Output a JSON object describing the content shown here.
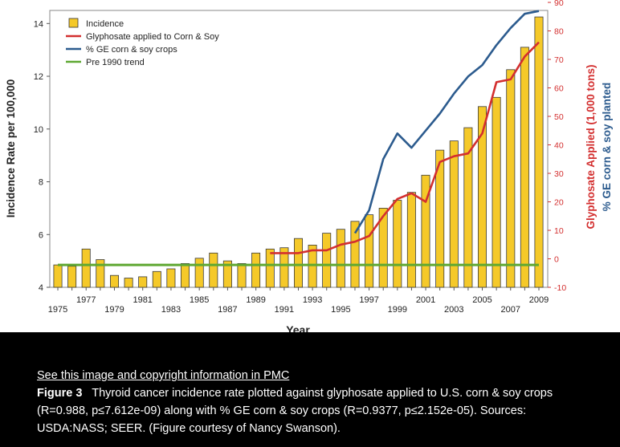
{
  "chart_data": {
    "type": "bar+line",
    "xlabel": "Year",
    "ylabel_left": "Incidence Rate per 100,000",
    "ylabel_right_1": "Glyphosate Applied (1,000 tons)",
    "ylabel_right_2": "% GE corn & soy planted",
    "ylim_left": [
      4,
      14.8
    ],
    "ylim_right": [
      -10,
      90
    ],
    "left_ticks": [
      4,
      6,
      8,
      10,
      12,
      14
    ],
    "right_ticks": [
      -10,
      0,
      10,
      20,
      30,
      40,
      50,
      60,
      70,
      80,
      90
    ],
    "x_tick_labels_lower": [
      "1975",
      "1979",
      "1983",
      "1987",
      "1991",
      "1995",
      "1999",
      "2003",
      "2007"
    ],
    "x_tick_labels_upper": [
      "1977",
      "1981",
      "1985",
      "1989",
      "1993",
      "1997",
      "2001",
      "2005",
      "2009"
    ],
    "x_tick_labels_lower_years": [
      1975,
      1979,
      1983,
      1987,
      1991,
      1995,
      1999,
      2003,
      2007
    ],
    "x_tick_labels_upper_years": [
      1977,
      1981,
      1985,
      1989,
      1993,
      1997,
      2001,
      2005,
      2009
    ],
    "years": [
      1975,
      1976,
      1977,
      1978,
      1979,
      1980,
      1981,
      1982,
      1983,
      1984,
      1985,
      1986,
      1987,
      1988,
      1989,
      1990,
      1991,
      1992,
      1993,
      1994,
      1995,
      1996,
      1997,
      1998,
      1999,
      2000,
      2001,
      2002,
      2003,
      2004,
      2005,
      2006,
      2007,
      2008,
      2009
    ],
    "series": [
      {
        "name": "Incidence",
        "kind": "bar",
        "axis": "left",
        "color": "#f5c929",
        "values": [
          4.85,
          4.8,
          5.45,
          5.05,
          4.45,
          4.35,
          4.4,
          4.6,
          4.7,
          4.9,
          5.1,
          5.3,
          5.0,
          4.9,
          5.3,
          5.45,
          5.5,
          5.85,
          5.6,
          6.05,
          6.2,
          6.5,
          6.75,
          7.0,
          7.3,
          7.6,
          8.25,
          9.2,
          9.55,
          10.05,
          10.85,
          11.2,
          12.25,
          13.1,
          14.25
        ]
      },
      {
        "name": "Glyphosate applied to Corn & Soy",
        "kind": "line",
        "axis": "right",
        "color": "#d32f2f",
        "years": [
          1990,
          1991,
          1992,
          1993,
          1994,
          1995,
          1996,
          1997,
          1998,
          1999,
          2000,
          2001,
          2002,
          2003,
          2004,
          2005,
          2006,
          2007,
          2008,
          2009
        ],
        "values": [
          2,
          2,
          2,
          3,
          3,
          5,
          6,
          8,
          15,
          21,
          23,
          20,
          34,
          36,
          37,
          44,
          62,
          63,
          71,
          76
        ]
      },
      {
        "name": "% GE corn & soy crops",
        "kind": "line",
        "axis": "right",
        "color": "#2c5b8e",
        "years": [
          1996,
          1997,
          1998,
          1999,
          2000,
          2001,
          2002,
          2003,
          2004,
          2005,
          2006,
          2007,
          2008,
          2009
        ],
        "values": [
          9,
          17,
          35,
          44,
          39,
          45,
          51,
          58,
          64,
          68,
          75,
          81,
          86,
          87
        ]
      },
      {
        "name": "Pre 1990 trend",
        "kind": "line",
        "axis": "left",
        "color": "#5fa832",
        "years": [
          1975,
          2009
        ],
        "values": [
          4.85,
          4.85
        ]
      }
    ]
  },
  "caption": {
    "link_text": "See this image and copyright information in PMC",
    "figure_label": "Figure 3",
    "text": "Thyroid cancer incidence rate plotted against glyphosate applied to U.S. corn & soy crops (R=0.988, p≤7.612e-09) along with % GE corn & soy crops (R=0.9377, p≤2.152e-05). Sources: USDA:NASS; SEER. (Figure courtesy of Nancy Swanson)."
  }
}
